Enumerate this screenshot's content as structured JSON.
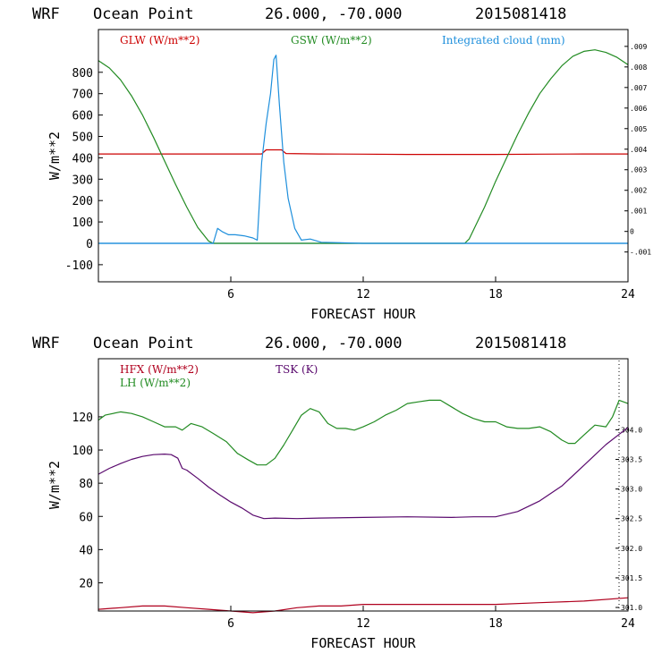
{
  "chart_data": [
    {
      "type": "line",
      "header": {
        "model": "WRF",
        "location": "Ocean Point",
        "coords": "26.000, -70.000",
        "run": "2015081418"
      },
      "xlabel": "FORECAST HOUR",
      "ylabel": "W/m**2",
      "xlim": [
        0,
        24
      ],
      "ylim": [
        -180,
        1000
      ],
      "x_ticks": [
        {
          "v": 6,
          "label": "6"
        },
        {
          "v": 12,
          "label": "12"
        },
        {
          "v": 18,
          "label": "18"
        },
        {
          "v": 24,
          "label": "24"
        }
      ],
      "y_ticks": [
        {
          "v": -100,
          "label": "-100"
        },
        {
          "v": 0,
          "label": "0"
        },
        {
          "v": 100,
          "label": "100"
        },
        {
          "v": 200,
          "label": "200"
        },
        {
          "v": 300,
          "label": "300"
        },
        {
          "v": 400,
          "label": "400"
        },
        {
          "v": 500,
          "label": "500"
        },
        {
          "v": 600,
          "label": "600"
        },
        {
          "v": 700,
          "label": "700"
        },
        {
          "v": 800,
          "label": "800"
        }
      ],
      "right_axis": {
        "ylim": [
          -0.00245,
          0.00982
        ],
        "ticks": [
          {
            "v": -0.001,
            "label": "-.001"
          },
          {
            "v": 0,
            "label": "0"
          },
          {
            "v": 0.001,
            "label": ".001"
          },
          {
            "v": 0.002,
            "label": ".002"
          },
          {
            "v": 0.003,
            "label": ".003"
          },
          {
            "v": 0.004,
            "label": ".004"
          },
          {
            "v": 0.005,
            "label": ".005"
          },
          {
            "v": 0.006,
            "label": ".006"
          },
          {
            "v": 0.007,
            "label": ".007"
          },
          {
            "v": 0.008,
            "label": ".008"
          },
          {
            "v": 0.009,
            "label": ".009"
          }
        ]
      },
      "legend": [
        {
          "label": "GLW (W/m**2)",
          "color": "#cc0000"
        },
        {
          "label": "GSW (W/m**2)",
          "color": "#228b22"
        },
        {
          "label": "Integrated cloud (mm)",
          "color": "#1e8fdc"
        }
      ],
      "zero_line_color": "#1e8fdc",
      "series": [
        {
          "name": "GLW (W/m**2)",
          "color": "#cc0000",
          "axis": "left",
          "x": [
            0,
            4,
            7.4,
            7.6,
            8.3,
            8.5,
            10,
            12,
            14,
            16,
            18,
            20,
            22,
            24
          ],
          "y": [
            418,
            418,
            418,
            437,
            437,
            420,
            418,
            417,
            416,
            416,
            416,
            417,
            418,
            418
          ]
        },
        {
          "name": "GSW (W/m**2)",
          "color": "#228b22",
          "axis": "left",
          "x": [
            0,
            0.5,
            1,
            1.5,
            2,
            2.5,
            3,
            3.5,
            4,
            4.5,
            5,
            5.2,
            16.6,
            16.8,
            17.5,
            18,
            18.5,
            19,
            19.5,
            20,
            20.5,
            21,
            21.5,
            22,
            22.5,
            23,
            23.5,
            24
          ],
          "y": [
            855,
            820,
            765,
            690,
            600,
            495,
            385,
            275,
            170,
            75,
            10,
            0,
            0,
            20,
            170,
            290,
            400,
            510,
            610,
            700,
            770,
            830,
            875,
            898,
            905,
            893,
            870,
            835
          ]
        },
        {
          "name": "Integrated cloud (mm)",
          "color": "#1e8fdc",
          "axis": "left",
          "x": [
            0,
            5.2,
            5.4,
            5.6,
            5.9,
            6.2,
            6.6,
            7.0,
            7.2,
            7.4,
            7.6,
            7.8,
            7.95,
            8.05,
            8.2,
            8.4,
            8.6,
            8.9,
            9.2,
            9.6,
            10.1,
            12,
            24
          ],
          "y": [
            0,
            0,
            70,
            55,
            40,
            40,
            35,
            25,
            15,
            380,
            560,
            700,
            860,
            880,
            650,
            380,
            210,
            70,
            15,
            20,
            5,
            0,
            0
          ]
        }
      ]
    },
    {
      "type": "line",
      "header": {
        "model": "WRF",
        "location": "Ocean Point",
        "coords": "26.000, -70.000",
        "run": "2015081418"
      },
      "xlabel": "FORECAST HOUR",
      "ylabel": "W/m**2",
      "xlim": [
        0,
        24
      ],
      "ylim": [
        3,
        155
      ],
      "x_ticks": [
        {
          "v": 6,
          "label": "6"
        },
        {
          "v": 12,
          "label": "12"
        },
        {
          "v": 18,
          "label": "18"
        },
        {
          "v": 24,
          "label": "24"
        }
      ],
      "y_ticks": [
        {
          "v": 20,
          "label": "20"
        },
        {
          "v": 40,
          "label": "40"
        },
        {
          "v": 60,
          "label": "60"
        },
        {
          "v": 80,
          "label": "80"
        },
        {
          "v": 100,
          "label": "100"
        },
        {
          "v": 120,
          "label": "120"
        }
      ],
      "right_axis": {
        "ylim": [
          300.94,
          305.2
        ],
        "ticks": [
          {
            "v": 301.0,
            "label": "301.0"
          },
          {
            "v": 301.5,
            "label": "301.5"
          },
          {
            "v": 302.0,
            "label": "302.0"
          },
          {
            "v": 302.5,
            "label": "302.5"
          },
          {
            "v": 303.0,
            "label": "303.0"
          },
          {
            "v": 303.5,
            "label": "303.5"
          },
          {
            "v": 304.0,
            "label": "304.0"
          }
        ]
      },
      "legend": [
        {
          "label": "HFX (W/m**2)",
          "color": "#b0001e"
        },
        {
          "label": "LH  (W/m**2)",
          "color": "#228b22"
        },
        {
          "label": "TSK (K)",
          "color": "#5a0a6e"
        }
      ],
      "series": [
        {
          "name": "HFX (W/m**2)",
          "color": "#b0001e",
          "axis": "left",
          "x": [
            0,
            1,
            2,
            3,
            4,
            5,
            6,
            7,
            8,
            9,
            10,
            11,
            12,
            14,
            16,
            18,
            20,
            22,
            24
          ],
          "y": [
            4,
            5,
            6,
            6,
            5,
            4,
            3,
            2,
            3,
            5,
            6,
            6,
            7,
            7,
            7,
            7,
            8,
            9,
            11
          ]
        },
        {
          "name": "LH  (W/m**2)",
          "color": "#228b22",
          "axis": "left",
          "x": [
            0,
            0.3,
            1,
            1.5,
            2,
            2.5,
            3,
            3.5,
            3.8,
            4.2,
            4.7,
            5.2,
            5.8,
            6.3,
            6.8,
            7.2,
            7.6,
            8.0,
            8.4,
            8.8,
            9.2,
            9.6,
            10,
            10.4,
            10.8,
            11.2,
            11.6,
            12,
            12.5,
            13,
            13.5,
            14,
            14.5,
            15,
            15.5,
            16,
            16.5,
            17,
            17.5,
            18,
            18.5,
            19,
            19.5,
            20,
            20.5,
            21,
            21.3,
            21.6,
            22,
            22.5,
            23,
            23.3,
            23.6,
            24
          ],
          "y": [
            118,
            121,
            123,
            122,
            120,
            117,
            114,
            114,
            112,
            116,
            114,
            110,
            105,
            98,
            94,
            91,
            91,
            95,
            103,
            112,
            121,
            125,
            123,
            116,
            113,
            113,
            112,
            114,
            117,
            121,
            124,
            128,
            129,
            130,
            130,
            126,
            122,
            119,
            117,
            117,
            114,
            113,
            113,
            114,
            111,
            106,
            104,
            104,
            109,
            115,
            114,
            120,
            130,
            128
          ]
        },
        {
          "name": "TSK (K)",
          "color": "#5a0a6e",
          "axis": "right",
          "x": [
            0,
            0.5,
            1,
            1.5,
            2,
            2.5,
            3,
            3.3,
            3.6,
            3.8,
            4.0,
            4.5,
            5,
            5.5,
            6,
            6.5,
            7,
            7.5,
            8,
            9,
            10,
            12,
            14,
            16,
            17,
            18,
            19,
            20,
            21,
            22,
            23,
            24
          ],
          "y": [
            303.25,
            303.35,
            303.43,
            303.5,
            303.55,
            303.58,
            303.59,
            303.58,
            303.52,
            303.35,
            303.32,
            303.18,
            303.03,
            302.9,
            302.78,
            302.68,
            302.56,
            302.5,
            302.51,
            302.5,
            302.51,
            302.52,
            302.53,
            302.52,
            302.53,
            302.53,
            302.62,
            302.8,
            303.05,
            303.4,
            303.75,
            304.04
          ]
        }
      ]
    }
  ]
}
